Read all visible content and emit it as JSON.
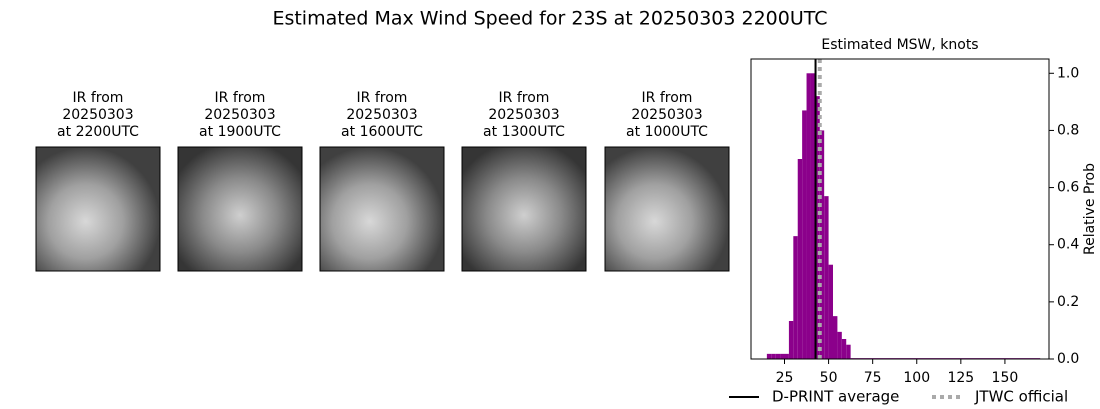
{
  "title": "Estimated Max Wind Speed for 23S at 20250303 2200UTC",
  "panels": [
    {
      "title": [
        "IR from",
        "20250303",
        "at 2200UTC"
      ]
    },
    {
      "title": [
        "IR from",
        "20250303",
        "at 1900UTC"
      ]
    },
    {
      "title": [
        "IR from",
        "20250303",
        "at 1600UTC"
      ]
    },
    {
      "title": [
        "IR from",
        "20250303",
        "at 1300UTC"
      ]
    },
    {
      "title": [
        "IR from",
        "20250303",
        "at 1000UTC"
      ]
    }
  ],
  "chart_data": {
    "type": "histogram",
    "title": "Estimated MSW, knots",
    "ylabel": "Relative Prob",
    "bins": [
      15,
      17.5,
      20,
      22.5,
      25,
      27.5,
      30,
      32.5,
      35,
      37.5,
      40,
      42.5,
      45,
      47.5,
      50,
      52.5,
      55,
      57.5,
      60,
      62.5,
      170
    ],
    "counts": [
      0.018,
      0.018,
      0.018,
      0.018,
      0.018,
      0.133,
      0.43,
      0.7,
      0.87,
      1.0,
      1.0,
      0.92,
      0.8,
      0.57,
      0.33,
      0.15,
      0.095,
      0.07,
      0.05,
      0.003
    ],
    "color": "#8b008b",
    "xlim": [
      6,
      175
    ],
    "ylim": [
      0,
      1.05
    ],
    "xticks": [
      25,
      50,
      75,
      100,
      125,
      150
    ],
    "yticks": [
      {
        "value": 0,
        "label": "0.0"
      },
      {
        "value": 0.2,
        "label": "0.2"
      },
      {
        "value": 0.4,
        "label": "0.4"
      },
      {
        "value": 0.6,
        "label": "0.6"
      },
      {
        "value": 0.8,
        "label": "0.8"
      },
      {
        "value": 1,
        "label": "1.0"
      }
    ],
    "y_axis_side": "right",
    "vlines": [
      {
        "name": "D-PRINT average",
        "value": 42.6,
        "color": "#000000",
        "style": "solid"
      },
      {
        "name": "JTWC official",
        "value": 45,
        "color": "#aaaaaa",
        "style": "dotted"
      }
    ],
    "legend": "bottom"
  }
}
